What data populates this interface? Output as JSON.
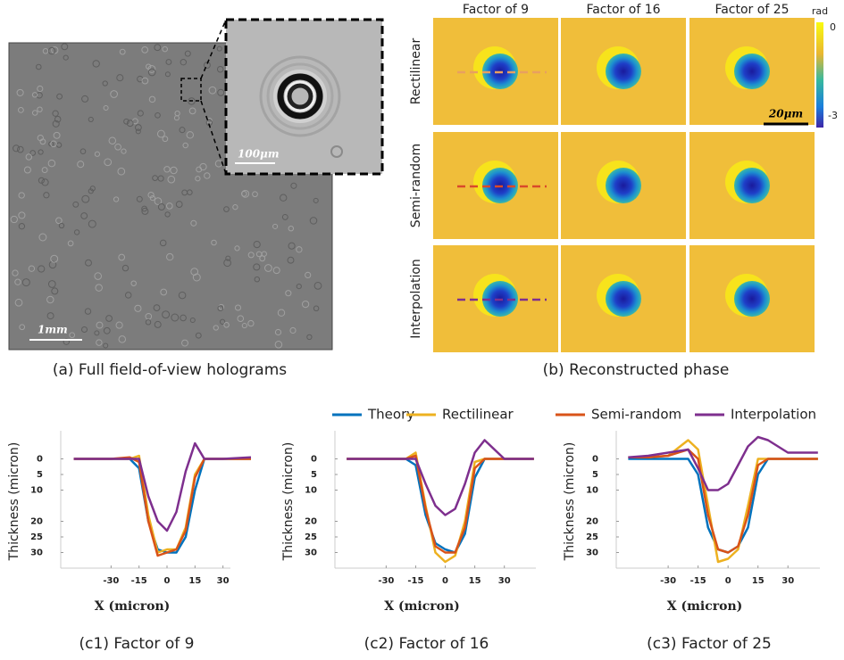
{
  "figure_a": {
    "caption": "(a) Full field-of-view holograms",
    "scale_main": "1mm",
    "scale_inset": "100μm"
  },
  "figure_b": {
    "caption": "(b) Reconstructed phase",
    "columns": [
      "Factor of 9",
      "Factor of 16",
      "Factor of 25"
    ],
    "rows": [
      "Rectilinear",
      "Semi-random",
      "Interpolation"
    ],
    "scale": "20μm",
    "colorbar": {
      "label": "rad",
      "ticks": [
        0,
        -3
      ]
    }
  },
  "chart_data": [
    {
      "type": "line",
      "caption": "(c1) Factor of 9",
      "xlabel": "X (micron)",
      "ylabel": "Thickness (micron)",
      "x": [
        -50,
        -40,
        -30,
        -20,
        -15,
        -10,
        -5,
        0,
        5,
        10,
        15,
        20,
        30,
        45
      ],
      "xlim": [
        -57,
        34
      ],
      "xticks": [
        -30,
        -15,
        0,
        15,
        30
      ],
      "ylim": [
        35,
        -9
      ],
      "yticks": [
        0,
        5,
        10,
        20,
        25,
        30
      ],
      "series": [
        {
          "name": "Theory",
          "color": "#0072bd",
          "values": [
            0,
            0,
            0,
            0,
            3,
            20,
            29,
            30,
            30,
            25,
            10,
            0,
            0,
            0
          ]
        },
        {
          "name": "Rectilinear",
          "color": "#edb120",
          "values": [
            0,
            0,
            0,
            0,
            -1,
            18,
            30,
            29,
            29,
            22,
            5,
            0,
            0,
            0
          ]
        },
        {
          "name": "Semi-random",
          "color": "#d95319",
          "values": [
            0,
            0,
            0,
            -0.5,
            1,
            20,
            31,
            30,
            29,
            23,
            6,
            0,
            0,
            0
          ]
        },
        {
          "name": "Interpolation",
          "color": "#7e2f8e",
          "values": [
            0,
            0,
            0,
            0,
            0,
            12,
            20,
            23,
            17,
            4,
            -5,
            0,
            0,
            -0.5
          ]
        }
      ]
    },
    {
      "type": "line",
      "caption": "(c2) Factor of 16",
      "xlabel": "X (micron)",
      "ylabel": "Thickness (micron)",
      "x": [
        -50,
        -40,
        -30,
        -20,
        -15,
        -10,
        -5,
        0,
        5,
        10,
        15,
        20,
        30,
        45
      ],
      "xlim": [
        -56,
        46
      ],
      "xticks": [
        -30,
        -15,
        0,
        15,
        30
      ],
      "ylim": [
        35,
        -9
      ],
      "yticks": [
        0,
        5,
        10,
        20,
        25,
        30
      ],
      "series": [
        {
          "name": "Theory",
          "color": "#0072bd",
          "values": [
            0,
            0,
            0,
            0,
            2,
            18,
            27,
            29,
            30,
            24,
            6,
            0,
            0,
            0
          ]
        },
        {
          "name": "Rectilinear",
          "color": "#edb120",
          "values": [
            0,
            0,
            0,
            0,
            -2,
            15,
            30,
            33,
            31,
            20,
            1,
            0,
            0,
            0
          ]
        },
        {
          "name": "Semi-random",
          "color": "#d95319",
          "values": [
            0,
            0,
            0,
            0,
            -1,
            16,
            28,
            30,
            30,
            22,
            3,
            0,
            0,
            0
          ]
        },
        {
          "name": "Interpolation",
          "color": "#7e2f8e",
          "values": [
            0,
            0,
            0,
            0,
            0,
            8,
            15,
            18,
            16,
            8,
            -2,
            -6,
            0,
            0
          ]
        }
      ]
    },
    {
      "type": "line",
      "caption": "(c3) Factor of 25",
      "xlabel": "X (micron)",
      "ylabel": "Thickness (micron)",
      "x": [
        -50,
        -40,
        -30,
        -20,
        -15,
        -10,
        -5,
        0,
        5,
        10,
        15,
        20,
        30,
        45
      ],
      "xlim": [
        -56,
        46
      ],
      "xticks": [
        -30,
        -15,
        0,
        15,
        30
      ],
      "ylim": [
        35,
        -9
      ],
      "yticks": [
        0,
        5,
        10,
        20,
        25,
        30
      ],
      "series": [
        {
          "name": "Theory",
          "color": "#0072bd",
          "values": [
            0,
            0,
            0,
            0,
            5,
            22,
            29,
            30,
            28,
            22,
            5,
            0,
            0,
            0
          ]
        },
        {
          "name": "Rectilinear",
          "color": "#edb120",
          "values": [
            -0.5,
            -0.5,
            -1,
            -6,
            -3,
            15,
            33,
            32,
            29,
            15,
            0,
            0,
            0,
            0
          ]
        },
        {
          "name": "Semi-random",
          "color": "#d95319",
          "values": [
            -0.5,
            -0.5,
            -1,
            -3,
            0,
            18,
            29,
            30,
            28,
            18,
            2,
            0,
            0,
            0
          ]
        },
        {
          "name": "Interpolation",
          "color": "#7e2f8e",
          "values": [
            -0.5,
            -1,
            -2,
            -3,
            3,
            10,
            10,
            8,
            2,
            -4,
            -7,
            -6,
            -2,
            -2
          ]
        }
      ]
    }
  ]
}
